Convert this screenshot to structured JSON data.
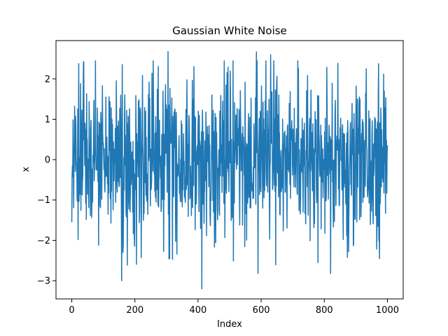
{
  "chart_data": {
    "type": "line",
    "title": "Gaussian White Noise",
    "xlabel": "Index",
    "ylabel": "x",
    "xlim": [
      -50,
      1050
    ],
    "ylim": [
      -3.45,
      2.95
    ],
    "xticks": [
      0,
      200,
      400,
      600,
      800,
      1000
    ],
    "xtick_labels": [
      "0",
      "200",
      "400",
      "600",
      "800",
      "1000"
    ],
    "yticks": [
      -3,
      -2,
      -1,
      0,
      1,
      2
    ],
    "ytick_labels": [
      "−3",
      "−2",
      "−1",
      "0",
      "1",
      "2"
    ],
    "grid": false,
    "legend": "none",
    "series": [
      {
        "color": "#1f77b4",
        "n_points": 1001,
        "x_start": 0,
        "x_end": 1000,
        "mean": 0,
        "std": 1,
        "y_min": -3.2,
        "y_max": 2.68,
        "notable_points": [
          {
            "x": 0,
            "y": -1.55
          },
          {
            "x": 20,
            "y": -1.98
          },
          {
            "x": 22,
            "y": 2.38
          },
          {
            "x": 75,
            "y": 2.45
          },
          {
            "x": 85,
            "y": -2.12
          },
          {
            "x": 158,
            "y": -3.0
          },
          {
            "x": 162,
            "y": -2.3
          },
          {
            "x": 305,
            "y": 2.68
          },
          {
            "x": 310,
            "y": -2.45
          },
          {
            "x": 412,
            "y": -3.2
          },
          {
            "x": 585,
            "y": 2.67
          },
          {
            "x": 590,
            "y": -2.82
          },
          {
            "x": 630,
            "y": 2.6
          },
          {
            "x": 780,
            "y": -2.55
          },
          {
            "x": 820,
            "y": -2.82
          },
          {
            "x": 975,
            "y": -2.45
          },
          {
            "x": 988,
            "y": 2.12
          }
        ]
      }
    ]
  }
}
